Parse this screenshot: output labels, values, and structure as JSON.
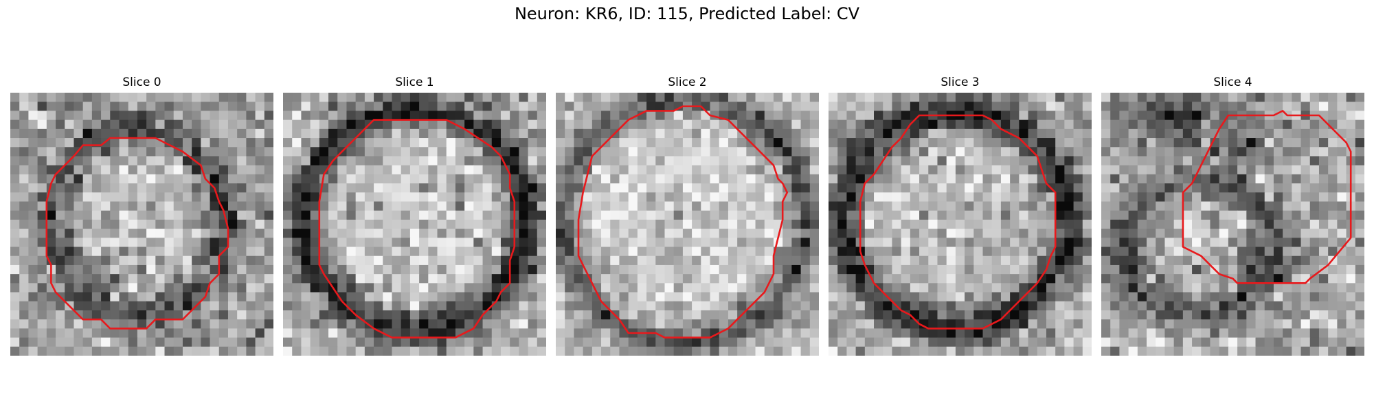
{
  "figure": {
    "title": "Neuron: KR6, ID: 115, Predicted Label: CV"
  },
  "panels": [
    {
      "title": "Slice 0"
    },
    {
      "title": "Slice 1"
    },
    {
      "title": "Slice 2"
    },
    {
      "title": "Slice 3"
    },
    {
      "title": "Slice 4"
    }
  ],
  "colors": {
    "contour": "#e8191c",
    "background": "#ffffff"
  }
}
